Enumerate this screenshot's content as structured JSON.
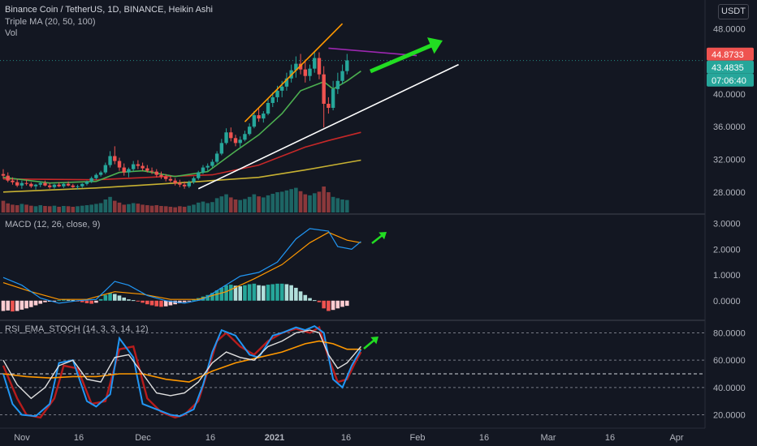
{
  "chart_data": [
    {
      "type": "candlestick",
      "title": "Binance Coin / TetherUS, 1D, BINANCE, Heikin Ashi",
      "indicator_labels": [
        "Triple MA (20, 50, 100)",
        "Vol"
      ],
      "currency": "USDT",
      "y_ticks": [
        "48.0000",
        "44.0000",
        "40.0000",
        "36.0000",
        "32.0000",
        "28.0000"
      ],
      "price_badges": [
        {
          "value": "44.8733",
          "color": "#ef5350"
        },
        {
          "value": "43.4835",
          "color": "#26a69a"
        },
        {
          "value": "07:06:40",
          "color": "#26a69a"
        }
      ],
      "ylim": [
        25.5,
        51.5
      ],
      "candles": [
        [
          30.2,
          30.8,
          29.6,
          30.0
        ],
        [
          30.0,
          30.4,
          29.2,
          29.4
        ],
        [
          29.4,
          29.8,
          28.9,
          29.2
        ],
        [
          29.2,
          29.6,
          28.6,
          28.8
        ],
        [
          28.8,
          29.4,
          28.4,
          29.1
        ],
        [
          29.1,
          29.5,
          28.8,
          29.0
        ],
        [
          29.0,
          29.2,
          28.5,
          28.7
        ],
        [
          28.7,
          29.0,
          28.3,
          28.9
        ],
        [
          28.9,
          29.3,
          28.6,
          29.1
        ],
        [
          29.1,
          29.4,
          28.7,
          28.8
        ],
        [
          28.8,
          29.1,
          28.4,
          28.6
        ],
        [
          28.6,
          29.0,
          28.4,
          28.9
        ],
        [
          28.9,
          29.2,
          28.6,
          28.7
        ],
        [
          28.7,
          29.1,
          28.5,
          29.0
        ],
        [
          29.0,
          29.3,
          28.7,
          28.8
        ],
        [
          28.8,
          29.0,
          28.5,
          28.6
        ],
        [
          28.6,
          28.9,
          28.3,
          28.7
        ],
        [
          28.7,
          29.1,
          28.5,
          29.0
        ],
        [
          29.0,
          29.4,
          28.8,
          29.3
        ],
        [
          29.3,
          29.9,
          29.1,
          29.7
        ],
        [
          29.7,
          30.3,
          29.5,
          30.1
        ],
        [
          30.1,
          30.6,
          29.9,
          30.4
        ],
        [
          30.4,
          31.6,
          30.2,
          31.3
        ],
        [
          31.3,
          33.0,
          31.0,
          32.4
        ],
        [
          32.4,
          33.6,
          31.4,
          31.8
        ],
        [
          31.8,
          32.2,
          30.6,
          31.0
        ],
        [
          31.0,
          31.5,
          30.0,
          30.4
        ],
        [
          30.4,
          31.0,
          29.8,
          30.8
        ],
        [
          30.8,
          31.8,
          30.5,
          31.4
        ],
        [
          31.4,
          31.9,
          30.8,
          31.2
        ],
        [
          31.2,
          31.6,
          30.6,
          30.9
        ],
        [
          30.9,
          31.3,
          30.4,
          30.6
        ],
        [
          30.6,
          31.0,
          30.2,
          30.5
        ],
        [
          30.5,
          30.8,
          29.8,
          30.1
        ],
        [
          30.1,
          30.5,
          29.6,
          29.9
        ],
        [
          29.9,
          30.2,
          29.3,
          29.6
        ],
        [
          29.6,
          30.0,
          29.2,
          29.4
        ],
        [
          29.4,
          29.7,
          28.8,
          29.1
        ],
        [
          29.1,
          29.5,
          28.6,
          28.9
        ],
        [
          28.9,
          29.3,
          28.4,
          28.7
        ],
        [
          28.7,
          29.4,
          28.5,
          29.2
        ],
        [
          29.2,
          29.9,
          29.0,
          29.7
        ],
        [
          29.7,
          30.6,
          29.5,
          30.4
        ],
        [
          30.4,
          31.3,
          30.2,
          31.0
        ],
        [
          31.0,
          31.5,
          30.6,
          31.2
        ],
        [
          31.2,
          32.0,
          31.0,
          31.7
        ],
        [
          31.7,
          33.0,
          31.5,
          32.7
        ],
        [
          32.7,
          34.5,
          32.5,
          34.0
        ],
        [
          34.0,
          35.8,
          33.8,
          35.3
        ],
        [
          35.3,
          35.9,
          34.2,
          34.6
        ],
        [
          34.6,
          35.0,
          33.6,
          34.0
        ],
        [
          34.0,
          34.8,
          33.5,
          34.4
        ],
        [
          34.4,
          35.5,
          34.2,
          35.1
        ],
        [
          35.1,
          36.4,
          34.9,
          36.0
        ],
        [
          36.0,
          37.9,
          35.8,
          37.4
        ],
        [
          37.4,
          38.2,
          36.6,
          37.0
        ],
        [
          37.0,
          37.9,
          36.5,
          37.6
        ],
        [
          37.6,
          39.4,
          37.4,
          38.9
        ],
        [
          38.9,
          40.2,
          38.4,
          39.6
        ],
        [
          39.6,
          41.0,
          39.0,
          40.4
        ],
        [
          40.4,
          41.6,
          39.6,
          40.9
        ],
        [
          40.9,
          42.6,
          40.4,
          41.9
        ],
        [
          41.9,
          43.6,
          41.4,
          42.9
        ],
        [
          42.9,
          44.6,
          42.0,
          43.7
        ],
        [
          43.7,
          44.9,
          42.4,
          43.0
        ],
        [
          43.0,
          44.2,
          41.4,
          42.2
        ],
        [
          42.2,
          43.6,
          41.6,
          43.1
        ],
        [
          43.1,
          45.2,
          42.6,
          44.4
        ],
        [
          44.4,
          45.1,
          41.8,
          42.4
        ],
        [
          42.4,
          43.4,
          35.9,
          38.8
        ],
        [
          38.8,
          39.6,
          37.6,
          38.3
        ],
        [
          38.3,
          41.6,
          38.0,
          40.6
        ],
        [
          40.6,
          42.6,
          40.0,
          41.6
        ],
        [
          41.6,
          43.6,
          41.2,
          42.8
        ],
        [
          42.8,
          44.9,
          42.4,
          44.1
        ]
      ],
      "ma_fast": [
        [
          0,
          29.8
        ],
        [
          10,
          29.1
        ],
        [
          20,
          29.3
        ],
        [
          25,
          30.4
        ],
        [
          30,
          30.6
        ],
        [
          37,
          29.9
        ],
        [
          44,
          30.5
        ],
        [
          50,
          33.0
        ],
        [
          55,
          35.0
        ],
        [
          60,
          37.6
        ],
        [
          64,
          40.4
        ],
        [
          69,
          41.5
        ],
        [
          71,
          40.6
        ],
        [
          74,
          41.6
        ],
        [
          77,
          42.8
        ]
      ],
      "ma_mid": [
        [
          0,
          29.6
        ],
        [
          20,
          29.5
        ],
        [
          35,
          29.9
        ],
        [
          45,
          30.1
        ],
        [
          55,
          31.3
        ],
        [
          65,
          33.5
        ],
        [
          70,
          34.3
        ],
        [
          77,
          35.3
        ]
      ],
      "ma_slow": [
        [
          0,
          28.0
        ],
        [
          20,
          28.5
        ],
        [
          40,
          29.2
        ],
        [
          55,
          29.8
        ],
        [
          65,
          30.7
        ],
        [
          72,
          31.4
        ],
        [
          77,
          31.9
        ]
      ],
      "volumes": [
        0.45,
        0.35,
        0.3,
        0.28,
        0.33,
        0.3,
        0.26,
        0.24,
        0.28,
        0.25,
        0.24,
        0.26,
        0.22,
        0.25,
        0.24,
        0.22,
        0.24,
        0.26,
        0.28,
        0.3,
        0.33,
        0.36,
        0.5,
        0.6,
        0.45,
        0.38,
        0.3,
        0.32,
        0.36,
        0.34,
        0.3,
        0.28,
        0.26,
        0.28,
        0.25,
        0.24,
        0.22,
        0.2,
        0.24,
        0.22,
        0.26,
        0.3,
        0.38,
        0.42,
        0.36,
        0.4,
        0.55,
        0.62,
        0.7,
        0.58,
        0.5,
        0.48,
        0.52,
        0.6,
        0.7,
        0.62,
        0.58,
        0.66,
        0.72,
        0.78,
        0.8,
        0.85,
        0.9,
        0.95,
        0.82,
        0.7,
        0.66,
        0.74,
        0.8,
        1.0,
        0.78,
        0.6,
        0.55,
        0.5,
        0.48
      ],
      "trendlines": [
        {
          "color": "#ff9800",
          "points": [
            [
              52,
              36.6
            ],
            [
              73,
              48.6
            ]
          ]
        },
        {
          "color": "#ffffff",
          "points": [
            [
              42,
              28.4
            ],
            [
              98,
              43.6
            ]
          ]
        },
        {
          "color": "#9c27b0",
          "points": [
            [
              70,
              45.6
            ],
            [
              89,
              44.7
            ]
          ]
        }
      ]
    },
    {
      "type": "line",
      "title": "MACD (12, 26, close, 9)",
      "y_ticks": [
        "3.0000",
        "2.0000",
        "1.0000",
        "0.0000"
      ],
      "ylim": [
        -0.7,
        3.3
      ],
      "macd": [
        [
          0,
          0.9
        ],
        [
          4,
          0.6
        ],
        [
          8,
          0.1
        ],
        [
          12,
          -0.1
        ],
        [
          16,
          0.0
        ],
        [
          20,
          0.05
        ],
        [
          24,
          0.75
        ],
        [
          27,
          0.6
        ],
        [
          31,
          0.2
        ],
        [
          35,
          0.0
        ],
        [
          39,
          -0.1
        ],
        [
          43,
          0.05
        ],
        [
          47,
          0.5
        ],
        [
          51,
          0.95
        ],
        [
          55,
          1.1
        ],
        [
          59,
          1.5
        ],
        [
          63,
          2.4
        ],
        [
          66,
          2.8
        ],
        [
          70,
          2.7
        ],
        [
          72,
          2.1
        ],
        [
          75,
          2.0
        ],
        [
          77,
          2.3
        ]
      ],
      "signal": [
        [
          0,
          0.7
        ],
        [
          6,
          0.35
        ],
        [
          12,
          0.05
        ],
        [
          18,
          0.05
        ],
        [
          24,
          0.35
        ],
        [
          30,
          0.25
        ],
        [
          36,
          0.05
        ],
        [
          42,
          0.05
        ],
        [
          48,
          0.35
        ],
        [
          54,
          0.85
        ],
        [
          60,
          1.4
        ],
        [
          66,
          2.25
        ],
        [
          70,
          2.65
        ],
        [
          74,
          2.35
        ],
        [
          77,
          2.25
        ]
      ],
      "histogram": [
        -0.4,
        -0.38,
        -0.42,
        -0.4,
        -0.35,
        -0.3,
        -0.25,
        -0.18,
        -0.12,
        -0.06,
        -0.04,
        -0.02,
        0.02,
        0.04,
        0.03,
        0.02,
        -0.02,
        -0.06,
        -0.1,
        -0.12,
        -0.08,
        0.06,
        0.22,
        0.3,
        0.26,
        0.2,
        0.12,
        0.05,
        0.02,
        -0.02,
        -0.08,
        -0.14,
        -0.18,
        -0.22,
        -0.24,
        -0.22,
        -0.18,
        -0.14,
        -0.1,
        -0.06,
        -0.02,
        0.04,
        0.1,
        0.16,
        0.22,
        0.3,
        0.4,
        0.5,
        0.6,
        0.62,
        0.58,
        0.56,
        0.6,
        0.64,
        0.66,
        0.6,
        0.58,
        0.62,
        0.64,
        0.66,
        0.66,
        0.64,
        0.6,
        0.5,
        0.36,
        0.22,
        0.1,
        0.02,
        -0.06,
        -0.3,
        -0.4,
        -0.36,
        -0.3,
        -0.24,
        -0.2
      ],
      "annotation": "up-arrow"
    },
    {
      "type": "line",
      "title": "RSI_EMA_STOCH (14, 3, 3, 14, 12)",
      "y_ticks": [
        "80.0000",
        "60.0000",
        "40.0000",
        "20.0000"
      ],
      "ylim": [
        12,
        88
      ],
      "levels": [
        80,
        60,
        50,
        40,
        20
      ],
      "stoch_k": [
        [
          0,
          50
        ],
        [
          2,
          28
        ],
        [
          4,
          20
        ],
        [
          7,
          19
        ],
        [
          10,
          28
        ],
        [
          12,
          58
        ],
        [
          15,
          60
        ],
        [
          18,
          30
        ],
        [
          20,
          26
        ],
        [
          23,
          35
        ],
        [
          25,
          76
        ],
        [
          28,
          62
        ],
        [
          30,
          28
        ],
        [
          33,
          24
        ],
        [
          36,
          20
        ],
        [
          38,
          19
        ],
        [
          41,
          24
        ],
        [
          43,
          42
        ],
        [
          45,
          66
        ],
        [
          47,
          82
        ],
        [
          50,
          78
        ],
        [
          53,
          64
        ],
        [
          55,
          62
        ],
        [
          58,
          78
        ],
        [
          60,
          80
        ],
        [
          63,
          84
        ],
        [
          65,
          82
        ],
        [
          67,
          85
        ],
        [
          69,
          80
        ],
        [
          71,
          46
        ],
        [
          73,
          40
        ],
        [
          75,
          56
        ],
        [
          77,
          68
        ]
      ],
      "stoch_d": [
        [
          0,
          56
        ],
        [
          3,
          32
        ],
        [
          5,
          20
        ],
        [
          8,
          18
        ],
        [
          11,
          32
        ],
        [
          13,
          56
        ],
        [
          16,
          54
        ],
        [
          19,
          28
        ],
        [
          22,
          30
        ],
        [
          25,
          68
        ],
        [
          28,
          70
        ],
        [
          31,
          32
        ],
        [
          34,
          22
        ],
        [
          37,
          18
        ],
        [
          39,
          20
        ],
        [
          42,
          30
        ],
        [
          44,
          52
        ],
        [
          46,
          74
        ],
        [
          48,
          80
        ],
        [
          51,
          70
        ],
        [
          54,
          64
        ],
        [
          57,
          74
        ],
        [
          60,
          80
        ],
        [
          63,
          83
        ],
        [
          66,
          80
        ],
        [
          68,
          84
        ],
        [
          70,
          62
        ],
        [
          72,
          44
        ],
        [
          74,
          46
        ],
        [
          76,
          60
        ],
        [
          77,
          66
        ]
      ],
      "rsi": [
        [
          0,
          60
        ],
        [
          3,
          42
        ],
        [
          6,
          32
        ],
        [
          9,
          40
        ],
        [
          12,
          56
        ],
        [
          15,
          60
        ],
        [
          18,
          46
        ],
        [
          21,
          44
        ],
        [
          24,
          62
        ],
        [
          27,
          64
        ],
        [
          30,
          50
        ],
        [
          33,
          36
        ],
        [
          36,
          34
        ],
        [
          39,
          36
        ],
        [
          42,
          44
        ],
        [
          45,
          58
        ],
        [
          48,
          66
        ],
        [
          51,
          62
        ],
        [
          54,
          60
        ],
        [
          57,
          70
        ],
        [
          60,
          74
        ],
        [
          63,
          80
        ],
        [
          66,
          82
        ],
        [
          68,
          80
        ],
        [
          70,
          64
        ],
        [
          72,
          54
        ],
        [
          74,
          58
        ],
        [
          77,
          70
        ]
      ],
      "ema": [
        [
          0,
          50
        ],
        [
          5,
          48
        ],
        [
          10,
          47
        ],
        [
          15,
          48
        ],
        [
          20,
          48
        ],
        [
          25,
          50
        ],
        [
          30,
          50
        ],
        [
          35,
          46
        ],
        [
          40,
          44
        ],
        [
          45,
          52
        ],
        [
          50,
          58
        ],
        [
          55,
          62
        ],
        [
          60,
          66
        ],
        [
          65,
          72
        ],
        [
          68,
          74
        ],
        [
          71,
          72
        ],
        [
          74,
          68
        ],
        [
          77,
          68
        ]
      ],
      "annotation": "up-arrow"
    }
  ],
  "x_axis": {
    "labels": [
      "Nov",
      "16",
      "Dec",
      "16",
      "2021",
      "16",
      "Feb",
      "16",
      "Mar",
      "16",
      "Apr"
    ]
  }
}
